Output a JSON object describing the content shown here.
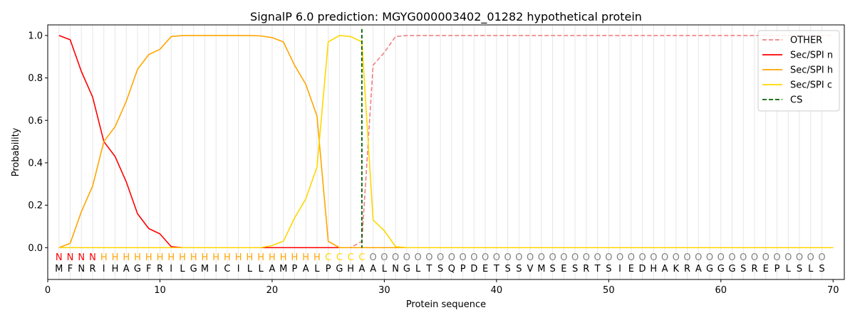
{
  "chart_data": {
    "type": "line",
    "title": "SignalP 6.0 prediction: MGYG000003402_01282 hypothetical protein",
    "xlabel": "Protein sequence",
    "ylabel": "Probability",
    "xlim": [
      0,
      71
    ],
    "ylim": [
      -0.15,
      1.05
    ],
    "x_ticks": [
      0,
      10,
      20,
      30,
      40,
      50,
      60,
      70
    ],
    "y_ticks": [
      0.0,
      0.2,
      0.4,
      0.6,
      0.8,
      1.0
    ],
    "x_tick_labels": [
      "0",
      "10",
      "20",
      "30",
      "40",
      "50",
      "60",
      "70"
    ],
    "y_tick_labels": [
      "0.0",
      "0.2",
      "0.4",
      "0.6",
      "0.8",
      "1.0"
    ],
    "grid": "vertical lines at each residue",
    "legend_position": "top-right",
    "sequence": "MFNRIHAGFRILGMICILLAMPALPGHAALNGLTSQPDETSSVMSESRTSIEDHAKRAGGGSREPLSLS",
    "labels": "NNNNHHHHHHHHHHHHHHHHHHHHCCCCOOOOOOOOOOOOOOOOOOOOOOOOOOOOOOOOOOOOOOOOOO",
    "label_colors": {
      "N": "#ff0000",
      "H": "#ffa500",
      "C": "#ffd700",
      "O": "#808080"
    },
    "cleavage_site": 28,
    "series": [
      {
        "name": "OTHER",
        "color": "#f08080",
        "dash": "dashed",
        "values": [
          0.0,
          0.0,
          0.0,
          0.0,
          0.0,
          0.0,
          0.0,
          0.0,
          0.0,
          0.0,
          0.0,
          0.0,
          0.0,
          0.0,
          0.0,
          0.0,
          0.0,
          0.0,
          0.0,
          0.0,
          0.0,
          0.0,
          0.0,
          0.0,
          0.0,
          0.0,
          0.0,
          0.03,
          0.86,
          0.92,
          0.995,
          1.0,
          1.0,
          1.0,
          1.0,
          1.0,
          1.0,
          1.0,
          1.0,
          1.0,
          1.0,
          1.0,
          1.0,
          1.0,
          1.0,
          1.0,
          1.0,
          1.0,
          1.0,
          1.0,
          1.0,
          1.0,
          1.0,
          1.0,
          1.0,
          1.0,
          1.0,
          1.0,
          1.0,
          1.0,
          1.0,
          1.0,
          1.0,
          1.0,
          1.0,
          1.0,
          1.0,
          1.0,
          1.0,
          1.0
        ]
      },
      {
        "name": "Sec/SPI n",
        "color": "#ff0000",
        "dash": "solid",
        "values": [
          1.0,
          0.98,
          0.83,
          0.71,
          0.5,
          0.43,
          0.31,
          0.16,
          0.09,
          0.065,
          0.005,
          0.0,
          0.0,
          0.0,
          0.0,
          0.0,
          0.0,
          0.0,
          0.0,
          0.0,
          0.0,
          0.0,
          0.0,
          0.0,
          0.0,
          0.0,
          0.0,
          0.0,
          0.0,
          0.0,
          0.0,
          0.0,
          0.0,
          0.0,
          0.0,
          0.0,
          0.0,
          0.0,
          0.0,
          0.0,
          0.0,
          0.0,
          0.0,
          0.0,
          0.0,
          0.0,
          0.0,
          0.0,
          0.0,
          0.0,
          0.0,
          0.0,
          0.0,
          0.0,
          0.0,
          0.0,
          0.0,
          0.0,
          0.0,
          0.0,
          0.0,
          0.0,
          0.0,
          0.0,
          0.0,
          0.0,
          0.0,
          0.0,
          0.0,
          0.0
        ]
      },
      {
        "name": "Sec/SPI h",
        "color": "#ffa500",
        "dash": "solid",
        "values": [
          0.0,
          0.02,
          0.17,
          0.29,
          0.5,
          0.57,
          0.69,
          0.84,
          0.91,
          0.935,
          0.995,
          1.0,
          1.0,
          1.0,
          1.0,
          1.0,
          1.0,
          1.0,
          0.998,
          0.99,
          0.97,
          0.86,
          0.77,
          0.62,
          0.03,
          0.0,
          0.0,
          0.0,
          0.0,
          0.0,
          0.0,
          0.0,
          0.0,
          0.0,
          0.0,
          0.0,
          0.0,
          0.0,
          0.0,
          0.0,
          0.0,
          0.0,
          0.0,
          0.0,
          0.0,
          0.0,
          0.0,
          0.0,
          0.0,
          0.0,
          0.0,
          0.0,
          0.0,
          0.0,
          0.0,
          0.0,
          0.0,
          0.0,
          0.0,
          0.0,
          0.0,
          0.0,
          0.0,
          0.0,
          0.0,
          0.0,
          0.0,
          0.0,
          0.0,
          0.0
        ]
      },
      {
        "name": "Sec/SPI c",
        "color": "#ffd700",
        "dash": "solid",
        "values": [
          0.0,
          0.0,
          0.0,
          0.0,
          0.0,
          0.0,
          0.0,
          0.0,
          0.0,
          0.0,
          0.0,
          0.0,
          0.0,
          0.0,
          0.0,
          0.0,
          0.0,
          0.0,
          0.0,
          0.01,
          0.03,
          0.14,
          0.23,
          0.38,
          0.97,
          1.0,
          0.995,
          0.97,
          0.13,
          0.08,
          0.005,
          0.0,
          0.0,
          0.0,
          0.0,
          0.0,
          0.0,
          0.0,
          0.0,
          0.0,
          0.0,
          0.0,
          0.0,
          0.0,
          0.0,
          0.0,
          0.0,
          0.0,
          0.0,
          0.0,
          0.0,
          0.0,
          0.0,
          0.0,
          0.0,
          0.0,
          0.0,
          0.0,
          0.0,
          0.0,
          0.0,
          0.0,
          0.0,
          0.0,
          0.0,
          0.0,
          0.0,
          0.0,
          0.0,
          0.0
        ]
      }
    ],
    "cs_legend": {
      "name": "CS",
      "color": "#006400",
      "dash": "dashed"
    }
  }
}
